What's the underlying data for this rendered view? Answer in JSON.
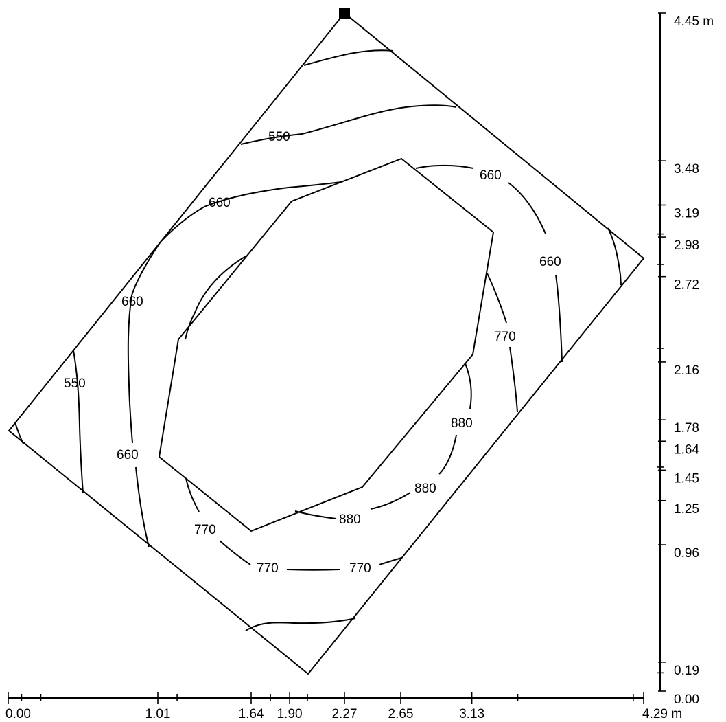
{
  "x_axis": {
    "ticks": [
      {
        "label": "0.00",
        "value": 0.0
      },
      {
        "label": "1.01",
        "value": 1.01
      },
      {
        "label": "1.64",
        "value": 1.64
      },
      {
        "label": "1.90",
        "value": 1.9
      },
      {
        "label": "2.27",
        "value": 2.27
      },
      {
        "label": "2.65",
        "value": 2.65
      },
      {
        "label": "3.13",
        "value": 3.13
      },
      {
        "label": "4.29 m",
        "value": 4.29
      }
    ],
    "minor_ticks": [
      0.09,
      0.22,
      1.14,
      1.77,
      2.02,
      3.44,
      4.22
    ]
  },
  "y_axis": {
    "ticks": [
      {
        "label": "4.45 m",
        "value": 4.45
      },
      {
        "label": "3.48",
        "value": 3.48
      },
      {
        "label": "3.19",
        "value": 3.19
      },
      {
        "label": "2.98",
        "value": 2.98
      },
      {
        "label": "2.72",
        "value": 2.72
      },
      {
        "label": "2.16",
        "value": 2.16
      },
      {
        "label": "1.78",
        "value": 1.78
      },
      {
        "label": "1.64",
        "value": 1.64
      },
      {
        "label": "1.45",
        "value": 1.45
      },
      {
        "label": "1.25",
        "value": 1.25
      },
      {
        "label": "0.96",
        "value": 0.96
      },
      {
        "label": "0.19",
        "value": 0.19
      },
      {
        "label": "0.00",
        "value": 0.0
      }
    ],
    "minor_ticks": [
      3.0,
      2.8,
      2.25,
      1.47,
      0.12
    ]
  },
  "contours": [
    {
      "label": "550",
      "count": 2
    },
    {
      "label": "660",
      "count": 5
    },
    {
      "label": "770",
      "count": 4
    },
    {
      "label": "880",
      "count": 3
    }
  ],
  "contour_labels": [
    "550",
    "550",
    "660",
    "660",
    "660",
    "660",
    "660",
    "770",
    "770",
    "770",
    "770",
    "880",
    "880",
    "880"
  ]
}
